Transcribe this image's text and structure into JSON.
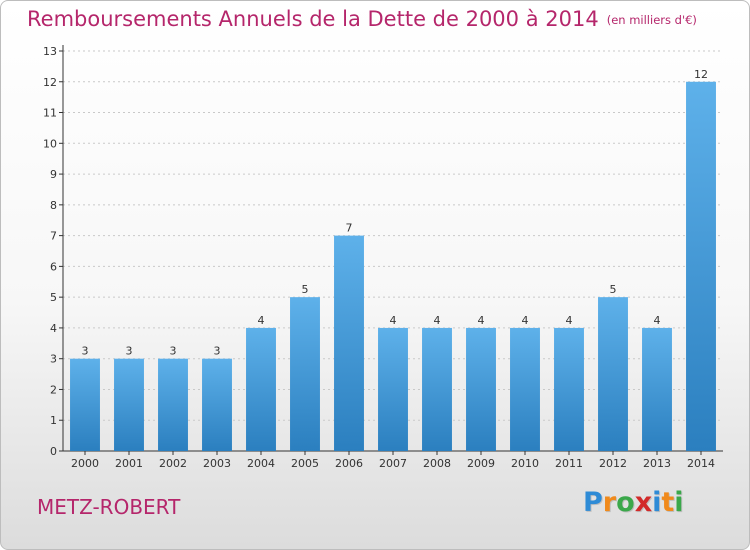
{
  "header": {
    "title": "Remboursements Annuels de la Dette de 2000 à 2014",
    "subtitle": "(en milliers d'€)"
  },
  "footer": {
    "place": "METZ-ROBERT",
    "logo_letters": [
      "P",
      "r",
      "o",
      "x",
      "i",
      "t",
      "i"
    ],
    "logo_colors": [
      "#2e8bd6",
      "#f08a1c",
      "#3aa84a",
      "#d22a2a",
      "#2e8bd6",
      "#f08a1c",
      "#3aa84a"
    ]
  },
  "colors": {
    "bar_light": "#5eb1ea",
    "bar_dark": "#2b7fbf",
    "axis": "#333333",
    "grid": "#c9c9c9",
    "title": "#b5266b"
  },
  "chart_data": {
    "type": "bar",
    "categories": [
      "2000",
      "2001",
      "2002",
      "2003",
      "2004",
      "2005",
      "2006",
      "2007",
      "2008",
      "2009",
      "2010",
      "2011",
      "2012",
      "2013",
      "2014"
    ],
    "values": [
      3,
      3,
      3,
      3,
      4,
      5,
      7,
      4,
      4,
      4,
      4,
      4,
      5,
      4,
      12
    ],
    "data_labels": [
      "3",
      "3",
      "3",
      "3",
      "4",
      "5",
      "7",
      "4",
      "4",
      "4",
      "4",
      "4",
      "5",
      "4",
      "12"
    ],
    "y_ticks": [
      "0",
      "1",
      "2",
      "3",
      "4",
      "5",
      "6",
      "7",
      "8",
      "9",
      "10",
      "11",
      "12",
      "13"
    ],
    "ylim": [
      0,
      13
    ],
    "grid": true,
    "legend": "none"
  }
}
